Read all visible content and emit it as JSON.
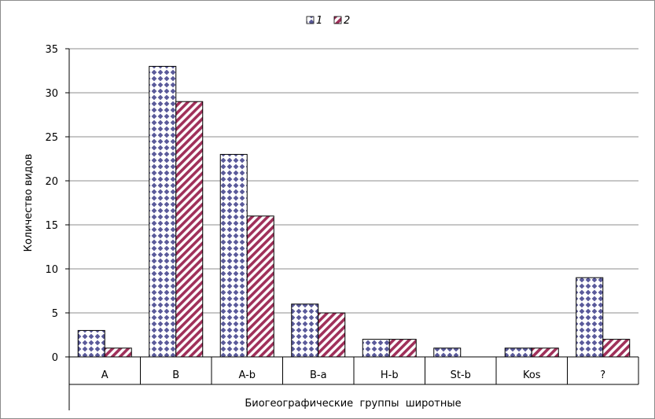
{
  "chart_data": {
    "type": "bar",
    "title": "",
    "xlabel": "Биогеографические  группы  широтные",
    "ylabel": "Количество видов",
    "categories": [
      "A",
      "B",
      "A-b",
      "B-a",
      "H-b",
      "St-b",
      "Kos",
      "?"
    ],
    "series": [
      {
        "name": "1",
        "values": [
          3,
          33,
          23,
          6,
          2,
          1,
          1,
          9
        ],
        "color": "#5a5a9a",
        "pattern": "diamond-dots"
      },
      {
        "name": "2",
        "values": [
          1,
          29,
          16,
          5,
          2,
          0,
          1,
          2
        ],
        "color": "#a0305a",
        "pattern": "diagonal-stripes"
      }
    ],
    "ylim": [
      0,
      35
    ],
    "yticks": [
      0,
      5,
      10,
      15,
      20,
      25,
      30,
      35
    ],
    "grid": true,
    "legend_position": "top-center"
  }
}
